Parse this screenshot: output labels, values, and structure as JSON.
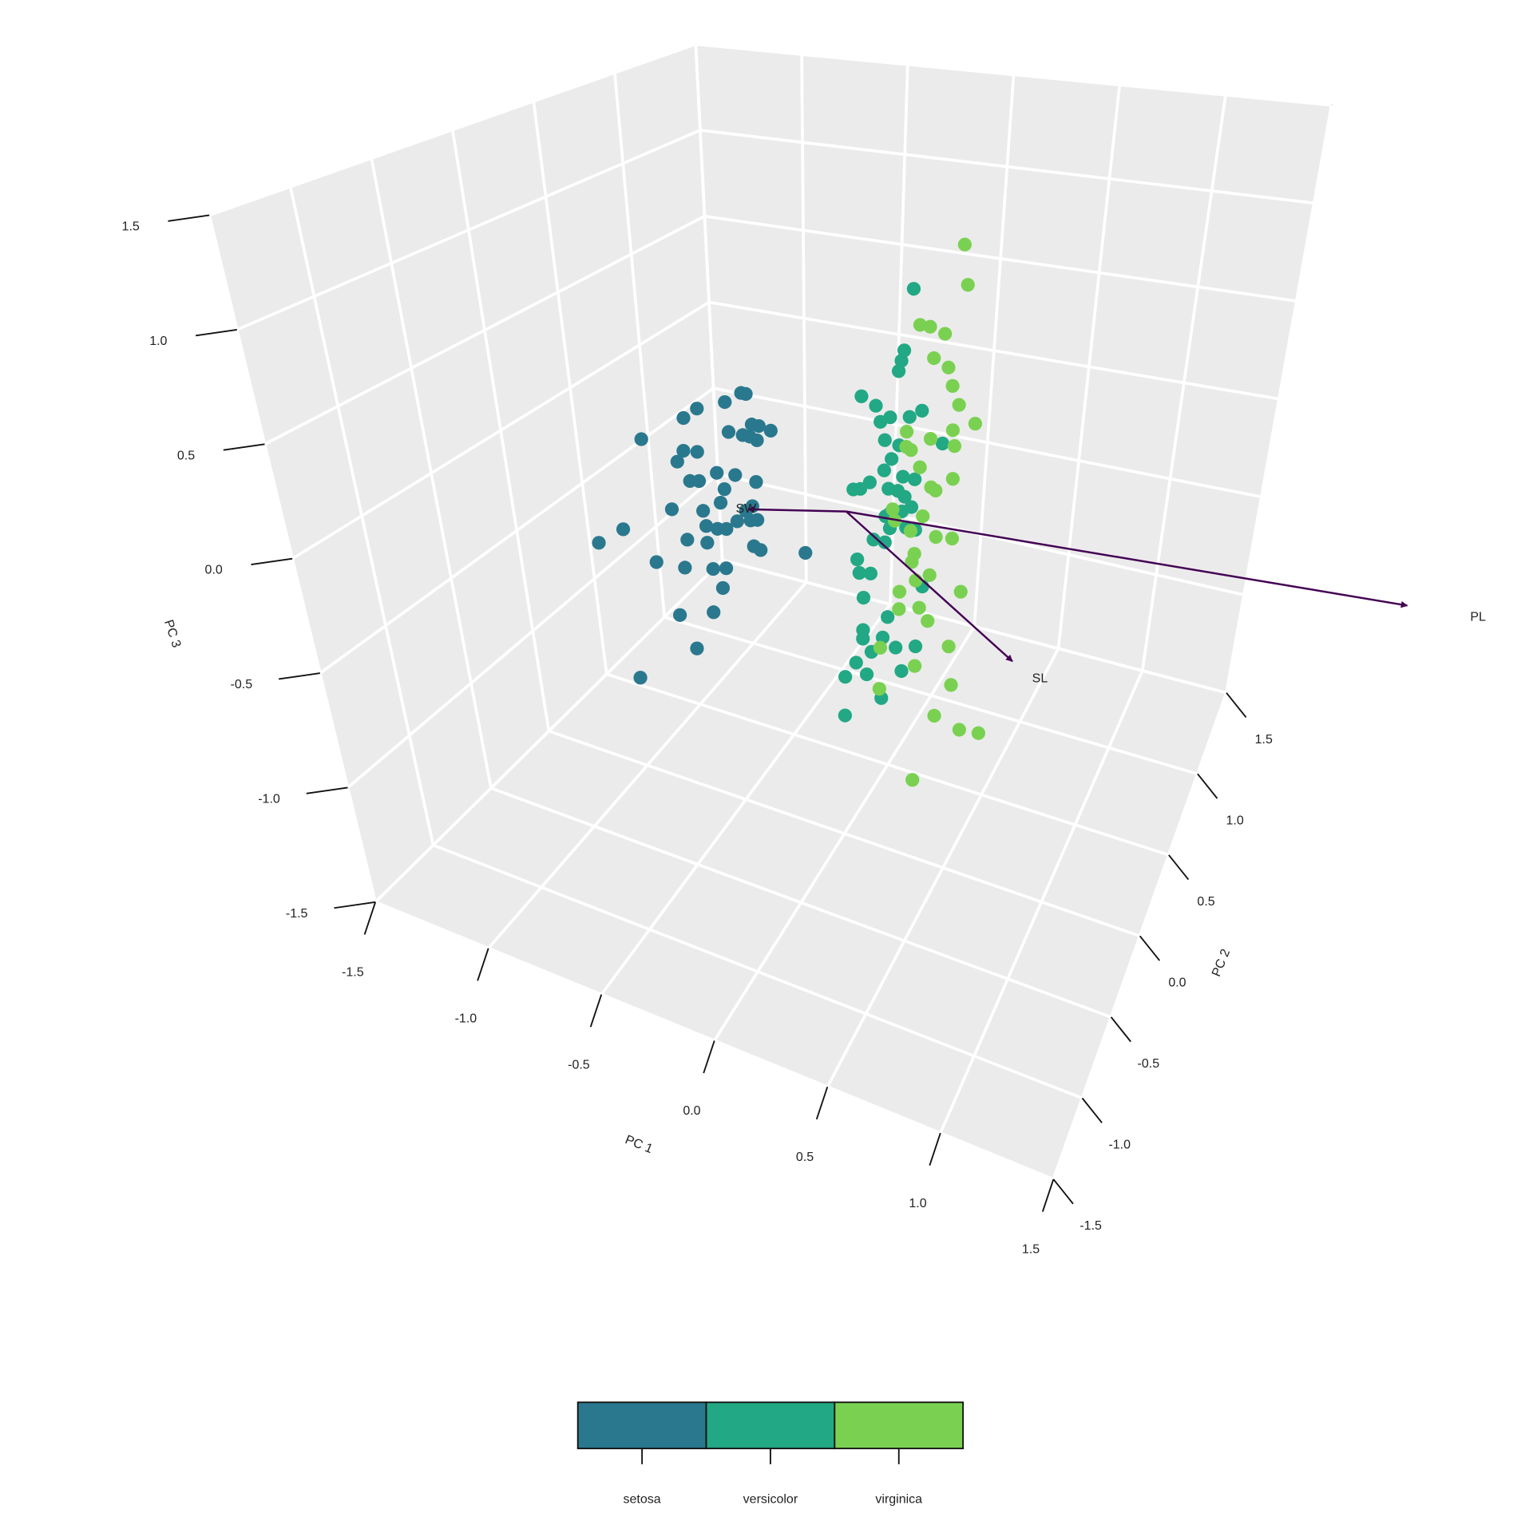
{
  "chart_data": {
    "type": "scatter3d",
    "xlabel": "PC 1",
    "ylabel": "PC 2",
    "zlabel": "PC 3",
    "xlim": [
      -1.5,
      1.5
    ],
    "ylim": [
      -1.5,
      1.5
    ],
    "zlim": [
      -1.5,
      1.5
    ],
    "xticks": [
      -1.5,
      {
        "value": -1,
        "label": "-1.0"
      },
      -0.5,
      {
        "value": 0,
        "label": "0.0"
      },
      0.5,
      {
        "value": 1,
        "label": "1.0"
      },
      1.5
    ],
    "yticks": [
      -1.5,
      {
        "value": -1,
        "label": "-1.0"
      },
      -0.5,
      {
        "value": 0,
        "label": "0.0"
      },
      0.5,
      {
        "value": 1,
        "label": "1.0"
      },
      1.5
    ],
    "zticks": [
      -1.5,
      {
        "value": -1,
        "label": "-1.0"
      },
      -0.5,
      {
        "value": 0,
        "label": "0.0"
      },
      0.5,
      {
        "value": 1,
        "label": "1.0"
      },
      1.5
    ],
    "grid": true,
    "series": [
      {
        "name": "setosa",
        "color": "#2a788e",
        "x": [
          -0.88,
          -0.69,
          -0.63,
          -0.51,
          -0.44,
          -0.42,
          -0.5,
          -0.44,
          -0.41,
          -0.38,
          -0.4,
          -0.37,
          -0.32,
          -0.7,
          -0.64,
          -0.73,
          -0.68,
          -0.64,
          -0.56,
          -0.48,
          -0.53,
          -0.39,
          -0.55,
          -0.77,
          -0.63,
          -0.41,
          -0.44,
          -0.62,
          -0.57,
          -0.53,
          -0.48,
          -0.42,
          -0.39,
          -0.71,
          -0.62,
          -0.41,
          -0.38,
          -1.0,
          -1.12,
          -0.86,
          -0.73,
          -0.6,
          -0.54,
          -0.56,
          -0.18,
          -0.77,
          -0.61,
          -0.7,
          -0.99
        ],
        "y": [
          0,
          0,
          0,
          0,
          0,
          0,
          0,
          0,
          0,
          0,
          0,
          0,
          0,
          0,
          0,
          0,
          0,
          0,
          0,
          0,
          0,
          0,
          0,
          0,
          0,
          0,
          0,
          0,
          0,
          0,
          0,
          0,
          0,
          0,
          0,
          0,
          0,
          0,
          0,
          0,
          0,
          0,
          0,
          0,
          0,
          0,
          0,
          0,
          0
        ],
        "z": [
          0.12,
          0.27,
          0.33,
          0.39,
          0.45,
          0.45,
          0.25,
          0.25,
          0.25,
          0.24,
          0.31,
          0.31,
          0.3,
          0.11,
          0.12,
          0.05,
          -0.03,
          -0.02,
          0.04,
          0.05,
          -0.03,
          0.04,
          -0.1,
          -0.19,
          -0.16,
          -0.08,
          -0.11,
          -0.23,
          -0.23,
          -0.22,
          -0.17,
          -0.15,
          -0.14,
          -0.32,
          -0.31,
          -0.27,
          -0.28,
          -0.35,
          -0.45,
          -0.47,
          -0.46,
          -0.43,
          -0.41,
          -0.51,
          -0.24,
          -0.7,
          -0.64,
          -0.84,
          -1.07
        ]
      },
      {
        "name": "versicolor",
        "color": "#22a884",
        "x": [
          0.26,
          0.23,
          0.22,
          0.21,
          0.06,
          0.12,
          0.18,
          0.31,
          0.26,
          0.14,
          0.16,
          0.22,
          0.4,
          0.19,
          0.16,
          0.24,
          0.29,
          0.03,
          0.06,
          0.1,
          0.18,
          0.22,
          0.24,
          0.28,
          0.19,
          0.17,
          0.26,
          0.19,
          0.12,
          0.17,
          0.05,
          0.06,
          0.11,
          0.08,
          0.19,
          0.08,
          0.08,
          0.17,
          0.23,
          0.32,
          0.05,
          0.12,
          0.1,
          0.0,
          0.26,
          0.17,
          0.0,
          0.34,
          0.3,
          0.25
        ],
        "y": [
          0,
          0,
          0,
          0,
          0,
          0,
          0,
          0,
          0,
          0,
          0,
          0,
          0,
          0,
          0,
          0,
          0,
          0,
          0,
          0,
          0,
          0,
          0,
          0,
          0,
          0,
          0,
          0,
          0,
          0,
          0,
          0,
          0,
          0,
          0,
          0,
          0,
          0,
          0,
          0,
          0,
          0,
          0,
          0,
          0,
          0,
          0,
          0,
          0,
          0
        ],
        "z": [
          1.09,
          0.8,
          0.75,
          0.7,
          0.55,
          0.52,
          0.48,
          0.54,
          0.5,
          0.45,
          0.37,
          0.36,
          0.41,
          0.29,
          0.23,
          0.22,
          0.22,
          0.11,
          0.12,
          0.16,
          0.15,
          0.15,
          0.06,
          0.09,
          0.04,
          0.02,
          -0.01,
          -0.03,
          -0.1,
          -0.1,
          -0.21,
          -0.27,
          -0.26,
          -0.38,
          -0.44,
          -0.53,
          -0.57,
          -0.54,
          -0.57,
          -0.54,
          -0.69,
          -0.62,
          -0.73,
          -0.77,
          -0.67,
          -0.82,
          -0.95,
          -0.26,
          -0.01,
          0.13
        ]
      },
      {
        "name": "virginica",
        "color": "#7ad151",
        "x": [
          0.45,
          0.47,
          0.29,
          0.33,
          0.39,
          0.35,
          0.41,
          0.43,
          0.46,
          0.53,
          0.44,
          0.25,
          0.35,
          0.27,
          0.45,
          0.31,
          0.45,
          0.36,
          0.38,
          0.2,
          0.33,
          0.28,
          0.39,
          0.46,
          0.3,
          0.29,
          0.31,
          0.37,
          0.24,
          0.51,
          0.33,
          0.24,
          0.37,
          0.47,
          0.16,
          0.32,
          0.49,
          0.16,
          0.42,
          0.54,
          0.63,
          0.33,
          0.25,
          0.21
        ],
        "y": [
          0,
          0,
          0,
          0,
          0,
          0,
          0,
          0,
          0,
          0,
          0,
          0,
          0,
          0,
          0,
          0,
          0,
          0,
          0,
          0,
          0,
          0,
          0,
          0,
          0,
          0,
          0,
          0,
          0,
          0,
          0,
          0,
          0,
          0,
          0,
          0,
          0,
          0,
          0,
          0,
          0,
          0,
          0,
          0
        ],
        "z": [
          1.33,
          1.15,
          0.93,
          0.93,
          0.91,
          0.79,
          0.76,
          0.68,
          0.6,
          0.53,
          0.48,
          0.43,
          0.42,
          0.35,
          0.41,
          0.28,
          0.26,
          0.2,
          0.19,
          0.06,
          0.06,
          -0.02,
          -0.02,
          -0.01,
          -0.12,
          -0.16,
          -0.24,
          -0.2,
          -0.31,
          -0.24,
          -0.36,
          -0.39,
          -0.41,
          -0.5,
          -0.59,
          -0.63,
          -0.67,
          -0.78,
          -0.83,
          -0.86,
          -0.85,
          -1.15,
          0.36,
          0.01
        ]
      }
    ],
    "arrows": [
      {
        "label": "SW",
        "x": -0.43,
        "y": 0,
        "z": -0.1
      },
      {
        "label": "PL",
        "x": 2.4,
        "y": 0,
        "z": 0.15
      },
      {
        "label": "SL",
        "x": 0.76,
        "y": 0,
        "z": -0.49
      }
    ],
    "arrow_color": "#440154"
  }
}
